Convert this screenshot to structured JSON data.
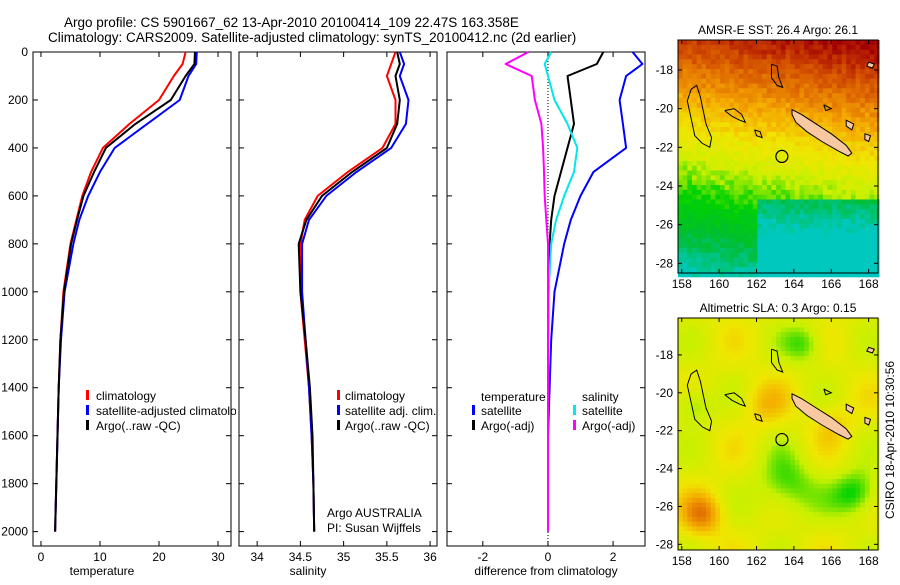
{
  "title": {
    "line1": "Argo profile: CS 5901667_62 13-Apr-2010 20100414_109 22.47S 163.358E",
    "line2": "Climatology: CARS2009. Satellite-adjusted climatology: synTS_20100412.nc (2d earlier)"
  },
  "footer_stamp": "CSIRO 18-Apr-2010 10:30:56",
  "colors": {
    "climatology": "#ff0000",
    "satellite": "#0000ff",
    "argo": "#000000",
    "sal_satellite": "#00e8e8",
    "sal_argo": "#ff00ff",
    "land": "#f8c8a0"
  },
  "chart_data": [
    {
      "type": "line",
      "id": "temperature",
      "xlabel": "temperature",
      "ylabel": "",
      "xlim": [
        -1.35,
        32.2
      ],
      "ylim": [
        2060,
        0
      ],
      "xticks": [
        0,
        10,
        20,
        30
      ],
      "yticks": [
        0,
        200,
        400,
        600,
        800,
        1000,
        1200,
        1400,
        1600,
        1800,
        2000
      ],
      "depth": [
        0,
        50,
        100,
        200,
        300,
        400,
        500,
        600,
        700,
        800,
        1000,
        1200,
        1400,
        1600,
        1800,
        2000
      ],
      "series": [
        {
          "name": "climatology",
          "color": "#ff0000",
          "values": [
            24.5,
            24,
            22.5,
            20,
            15,
            10.5,
            8.5,
            7,
            6,
            5,
            3.8,
            3.3,
            3,
            2.8,
            2.6,
            2.4
          ]
        },
        {
          "name": "satellite-adjusted climatology",
          "color": "#0000ff",
          "values": [
            26.4,
            26.3,
            25,
            23.5,
            18,
            12.5,
            10,
            8,
            6.5,
            5.5,
            4,
            3.4,
            3,
            2.8,
            2.6,
            2.4
          ]
        },
        {
          "name": "Argo(..raw -QC)",
          "color": "#000000",
          "values": [
            26.1,
            26,
            24.5,
            22,
            16,
            11,
            9,
            7.2,
            6.1,
            5.1,
            3.9,
            3.3,
            3,
            2.8,
            2.6,
            2.4
          ]
        }
      ],
      "legend": {
        "placement": "bottom-right",
        "entries": [
          "climatology",
          "satellite-adjusted climatology",
          "Argo(..raw -QC)"
        ]
      }
    },
    {
      "type": "line",
      "id": "salinity",
      "xlabel": "salinity",
      "xlim": [
        33.79,
        36.08
      ],
      "ylim": [
        2060,
        0
      ],
      "xticks": [
        34,
        34.5,
        35,
        35.5,
        36
      ],
      "depth": [
        0,
        50,
        100,
        200,
        300,
        400,
        500,
        600,
        700,
        800,
        1000,
        1200,
        1400,
        1600,
        1800,
        2000
      ],
      "series": [
        {
          "name": "climatology",
          "color": "#ff0000",
          "values": [
            35.6,
            35.55,
            35.5,
            35.6,
            35.6,
            35.45,
            35.05,
            34.7,
            34.55,
            34.5,
            34.5,
            34.55,
            34.6,
            34.63,
            34.65,
            34.66
          ]
        },
        {
          "name": "satellite adj. clim.",
          "color": "#0000ff",
          "values": [
            35.65,
            35.7,
            35.65,
            35.75,
            35.72,
            35.55,
            35.15,
            34.8,
            34.6,
            34.52,
            34.52,
            34.56,
            34.6,
            34.63,
            34.65,
            34.66
          ]
        },
        {
          "name": "Argo(..raw -QC)",
          "color": "#000000",
          "values": [
            35.62,
            35.65,
            35.6,
            35.65,
            35.62,
            35.5,
            35.1,
            34.75,
            34.57,
            34.48,
            34.5,
            34.56,
            34.61,
            34.64,
            34.65,
            34.66
          ]
        }
      ],
      "legend": {
        "placement": "bottom-right",
        "entries": [
          "climatology",
          "satellite adj. clim.",
          "Argo(..raw -QC)"
        ]
      },
      "annotation": [
        "Argo AUSTRALIA",
        "PI: Susan Wijffels"
      ]
    },
    {
      "type": "line",
      "id": "difference",
      "xlabel": "difference from climatology",
      "xlim": [
        -3.1,
        2.98
      ],
      "ylim": [
        2060,
        0
      ],
      "xticks": [
        -2,
        0,
        2
      ],
      "depth": [
        0,
        50,
        100,
        200,
        300,
        400,
        500,
        600,
        700,
        800,
        1000,
        1200,
        1400,
        1600,
        1800,
        2000
      ],
      "series": [
        {
          "name": "temperature satellite",
          "color": "#0000ff",
          "values": [
            2.6,
            2.9,
            2.4,
            2.2,
            2.3,
            2.4,
            1.4,
            1.0,
            0.7,
            0.5,
            0.2,
            0.1,
            0.05,
            0,
            0,
            0
          ]
        },
        {
          "name": "temperature Argo(-adj)",
          "color": "#000000",
          "values": [
            1.7,
            1.5,
            0.6,
            0.7,
            0.8,
            0.6,
            0.4,
            0.2,
            0.1,
            0.05,
            0.02,
            0,
            0,
            0,
            0,
            0
          ]
        },
        {
          "name": "salinity satellite",
          "color": "#00e8e8",
          "values": [
            0.1,
            -0.1,
            0,
            0.2,
            0.6,
            0.9,
            0.8,
            0.5,
            0.25,
            0.1,
            0.02,
            0,
            0,
            0,
            0,
            0
          ]
        },
        {
          "name": "salinity Argo(-adj)",
          "color": "#ff00ff",
          "values": [
            -0.6,
            -1.3,
            -0.5,
            -0.4,
            -0.2,
            -0.15,
            -0.12,
            -0.1,
            -0.05,
            0,
            0,
            0,
            0,
            0,
            0,
            0
          ]
        }
      ],
      "legend": {
        "placement": "bottom",
        "headers": [
          "temperature",
          "salinity"
        ],
        "entries": [
          "satellite",
          "Argo(-adj)",
          "satellite",
          "Argo(-adj)"
        ]
      }
    },
    {
      "type": "heatmap",
      "id": "sst-map",
      "title": "AMSR-E SST: 26.4 Argo: 26.1",
      "xlim": [
        157.8,
        168.5
      ],
      "ylim": [
        -28.5,
        -16.45
      ],
      "xticks": [
        158,
        160,
        162,
        164,
        166,
        168
      ],
      "yticks": [
        -18,
        -20,
        -22,
        -24,
        -26,
        -28
      ],
      "argo_position": {
        "lon": 163.358,
        "lat": -22.47
      }
    },
    {
      "type": "heatmap",
      "id": "sla-map",
      "title": "Altimetric SLA: 0.3 Argo: 0.15",
      "xlim": [
        157.8,
        168.5
      ],
      "ylim": [
        -28.3,
        -16.05
      ],
      "xticks": [
        158,
        160,
        162,
        164,
        166,
        168
      ],
      "yticks": [
        -18,
        -20,
        -22,
        -24,
        -26,
        -28
      ],
      "argo_position": {
        "lon": 163.358,
        "lat": -22.47
      }
    }
  ]
}
